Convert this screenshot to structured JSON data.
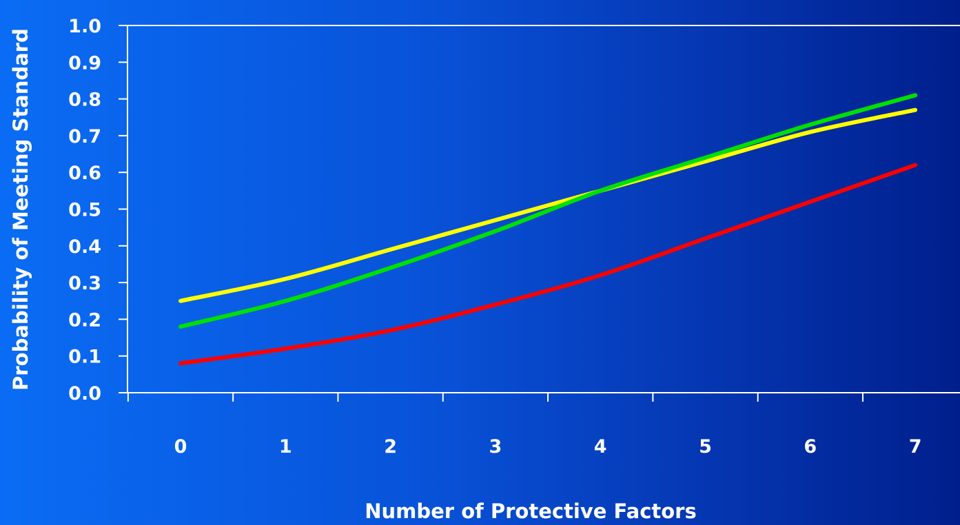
{
  "chart_data": {
    "type": "line",
    "title": "",
    "xlabel": "Number of Protective Factors",
    "ylabel": "Probability of Meeting Standard",
    "x": [
      0,
      1,
      2,
      3,
      4,
      5,
      6,
      7
    ],
    "x_tick_labels": [
      "0",
      "1",
      "2",
      "3",
      "4",
      "5",
      "6",
      "7"
    ],
    "y_tick_labels": [
      "0.0",
      "0.1",
      "0.2",
      "0.3",
      "0.4",
      "0.5",
      "0.6",
      "0.7",
      "0.8",
      "0.9",
      "1.0"
    ],
    "ylim": [
      0,
      1
    ],
    "grid": false,
    "legend": "none",
    "series": [
      {
        "color": "#ffff00",
        "values": [
          0.25,
          0.31,
          0.39,
          0.47,
          0.55,
          0.63,
          0.71,
          0.77
        ]
      },
      {
        "color": "#00e000",
        "values": [
          0.18,
          0.25,
          0.34,
          0.44,
          0.55,
          0.64,
          0.73,
          0.81
        ]
      },
      {
        "color": "#ff0000",
        "values": [
          0.08,
          0.12,
          0.17,
          0.24,
          0.32,
          0.42,
          0.52,
          0.62
        ]
      }
    ]
  }
}
